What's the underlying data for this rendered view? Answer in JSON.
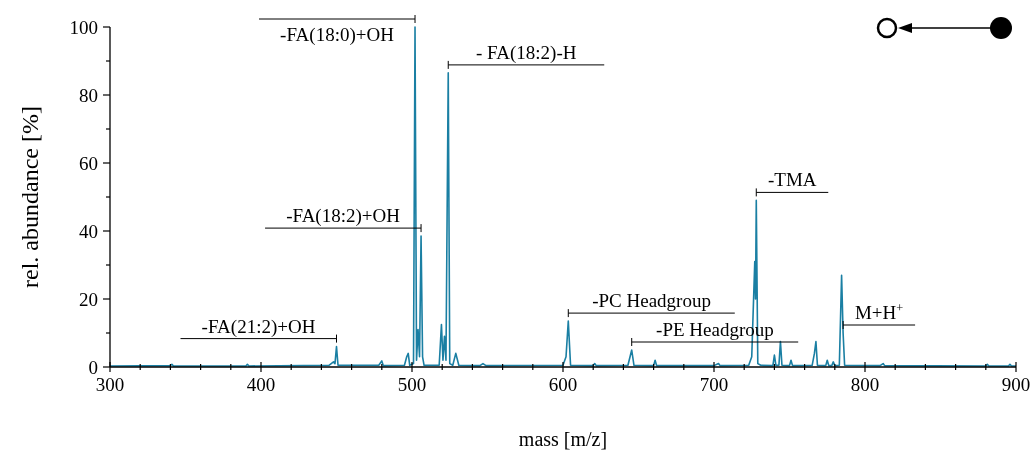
{
  "chart_data": {
    "type": "line",
    "xlabel": "mass [m/z]",
    "ylabel": "rel. abundance [%]",
    "xlim": [
      300,
      900
    ],
    "ylim": [
      0,
      100
    ],
    "xticks": [
      300,
      {
        "value": 320,
        "label": null
      },
      {
        "value": 340,
        "label": null
      },
      {
        "value": 360,
        "label": null
      },
      {
        "value": 380,
        "label": null
      },
      400,
      {
        "value": 420,
        "label": null
      },
      {
        "value": 440,
        "label": null
      },
      {
        "value": 460,
        "label": null
      },
      {
        "value": 480,
        "label": null
      },
      500,
      {
        "value": 520,
        "label": null
      },
      {
        "value": 540,
        "label": null
      },
      {
        "value": 560,
        "label": null
      },
      {
        "value": 580,
        "label": null
      },
      600,
      {
        "value": 620,
        "label": null
      },
      {
        "value": 640,
        "label": null
      },
      {
        "value": 660,
        "label": null
      },
      {
        "value": 680,
        "label": null
      },
      700,
      {
        "value": 720,
        "label": null
      },
      {
        "value": 740,
        "label": null
      },
      {
        "value": 760,
        "label": null
      },
      {
        "value": 780,
        "label": null
      },
      800,
      {
        "value": 820,
        "label": null
      },
      {
        "value": 840,
        "label": null
      },
      {
        "value": 860,
        "label": null
      },
      {
        "value": 880,
        "label": null
      },
      900
    ],
    "yticks": [
      0,
      {
        "value": 10,
        "label": null
      },
      20,
      {
        "value": 30,
        "label": null
      },
      40,
      {
        "value": 50,
        "label": null
      },
      60,
      {
        "value": 70,
        "label": null
      },
      80,
      {
        "value": 90,
        "label": null
      },
      100
    ],
    "grid": false,
    "marker": "none",
    "line_style": "solid",
    "series": [
      {
        "color": "#1a7fa3",
        "x": [
          300,
          340,
          341,
          342,
          390,
          391,
          392,
          445,
          448,
          449,
          450,
          451,
          478,
          480,
          481,
          495,
          496.5,
          497.5,
          498.5,
          501,
          502,
          503,
          504,
          505,
          506,
          507,
          508,
          518,
          519.5,
          520.5,
          521.5,
          522.5,
          524,
          525,
          527,
          529,
          531,
          545,
          547,
          549,
          600,
          602,
          603.5,
          605,
          620,
          621,
          622,
          643,
          645.5,
          647,
          660,
          661,
          662,
          700,
          703,
          704,
          723,
          725,
          727,
          727.5,
          728,
          729,
          731,
          739,
          740,
          741,
          743,
          744,
          745,
          750,
          751,
          752,
          765,
          766.5,
          767.5,
          768.5,
          774,
          775,
          776,
          778,
          779,
          780,
          783,
          784.5,
          785.5,
          786.5,
          810,
          812,
          813,
          880,
          881,
          882,
          895,
          896,
          897,
          900
        ],
        "values": [
          0.3,
          0.4,
          0.8,
          0.3,
          0.3,
          0.8,
          0.3,
          0.5,
          1.5,
          1,
          6,
          0.5,
          0.5,
          1.8,
          0.4,
          0.5,
          3,
          4,
          0.5,
          1,
          100,
          2,
          11,
          3,
          38.5,
          3,
          0.5,
          0.5,
          12.5,
          2,
          9,
          2,
          86.5,
          1,
          0.5,
          4,
          0.5,
          0.4,
          1,
          0.4,
          0.5,
          3,
          13.5,
          0.5,
          0.4,
          1,
          0.4,
          0.5,
          5,
          0.5,
          0.4,
          2,
          0.4,
          0.4,
          1,
          0.4,
          0.5,
          3,
          31,
          20,
          49,
          1,
          0.5,
          0.4,
          3.5,
          0.5,
          0.5,
          7.5,
          0.5,
          0.4,
          2,
          0.4,
          0.5,
          4,
          7.5,
          0.5,
          0.4,
          2,
          0.4,
          0.4,
          1.5,
          0.4,
          0.5,
          27,
          10,
          0.5,
          0.4,
          1,
          0.4,
          0.3,
          0.8,
          0.3,
          0.3,
          0.8,
          0.3,
          0.3
        ]
      }
    ],
    "annotations": [
      {
        "text": "-FA(18:0)+OH",
        "x": 502,
        "y": 100
      },
      {
        "text": "- FA(18:2)-H",
        "x": 524,
        "y": 86.5
      },
      {
        "text": "-FA(18:2)+OH",
        "x": 506,
        "y": 38.5
      },
      {
        "text": "-TMA",
        "x": 728,
        "y": 49
      },
      {
        "text": "-PC Headgroup",
        "x": 603.5,
        "y": 13.5
      },
      {
        "text": "-PE Headgroup",
        "x": 645.5,
        "y": 5
      },
      {
        "text": "M+H$^{+}$",
        "x": 785.5,
        "y": 10
      },
      {
        "text": "-FA(21:2)+OH",
        "x": 450,
        "y": 6
      }
    ]
  }
}
